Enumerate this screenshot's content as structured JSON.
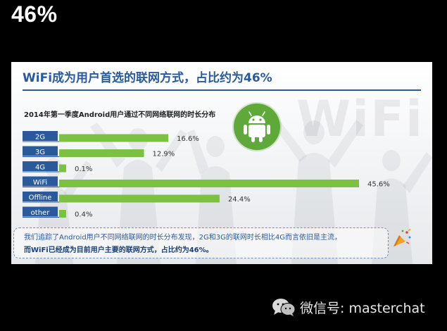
{
  "headline": "46%",
  "card": {
    "title": "WiFi成为用户首选的联网方式，占比约为46%",
    "watermark": "WiFi",
    "note": {
      "line1": "我们追踪了Android用户不同网络联网的时长分布发现，2G和3G的联网时长相比4G而言依旧是主流，",
      "line2": "而WiFi已经成为目前用户主要的联网方式，占比约为46%。"
    }
  },
  "chart_data": {
    "type": "bar",
    "orientation": "horizontal",
    "title": "2014年第一季度Android用户通过不同网络联网的时长分布",
    "categories": [
      "2G",
      "3G",
      "4G",
      "WiFi",
      "Offline",
      "other"
    ],
    "values": [
      16.6,
      12.9,
      0.1,
      45.6,
      24.4,
      0.4
    ],
    "value_labels": [
      "16.6%",
      "12.9%",
      "0.1%",
      "45.6%",
      "24.4%",
      "0.4%"
    ],
    "unit": "%",
    "xlim": [
      0,
      45.6
    ],
    "grid": false,
    "legend": "none",
    "colors": {
      "bar": "#7dc142",
      "category_label_bg": "#2a5a9c",
      "category_label_text": "#ffffff"
    }
  },
  "icons": {
    "badge": "android-icon",
    "footer": "wechat-icon",
    "confetti": "party-popper-icon"
  },
  "footer": {
    "wechat_label": "微信号: masterchat"
  },
  "colors": {
    "background": "#000000",
    "card_title": "#2a5a9c",
    "badge_green": "#5ea93a"
  }
}
